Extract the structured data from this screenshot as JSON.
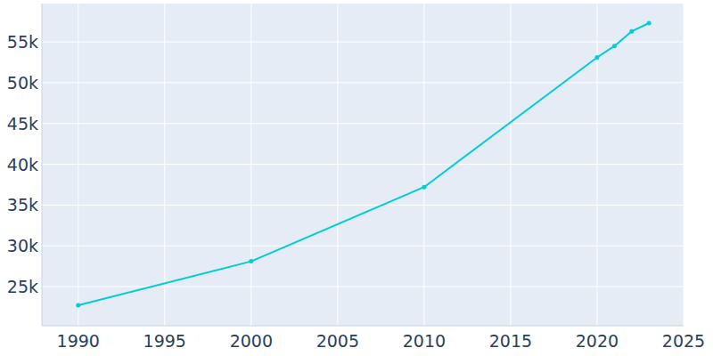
{
  "chart_data": {
    "type": "line",
    "x": [
      1990,
      2000,
      2010,
      2020,
      2021,
      2022,
      2023
    ],
    "values": [
      22700,
      28100,
      37200,
      53100,
      54500,
      56300,
      57300
    ],
    "color": "#00ced1",
    "marker": "circle",
    "xlim": [
      1987.9,
      2025
    ],
    "xticks": [
      1990,
      1995,
      2000,
      2005,
      2010,
      2015,
      2020,
      2025
    ],
    "ylim": [
      20200,
      59700
    ],
    "yticks": [
      {
        "value": 25000,
        "label": "25k"
      },
      {
        "value": 30000,
        "label": "30k"
      },
      {
        "value": 35000,
        "label": "35k"
      },
      {
        "value": 40000,
        "label": "40k"
      },
      {
        "value": 45000,
        "label": "45k"
      },
      {
        "value": 50000,
        "label": "50k"
      },
      {
        "value": 55000,
        "label": "55k"
      }
    ],
    "grid": true
  }
}
